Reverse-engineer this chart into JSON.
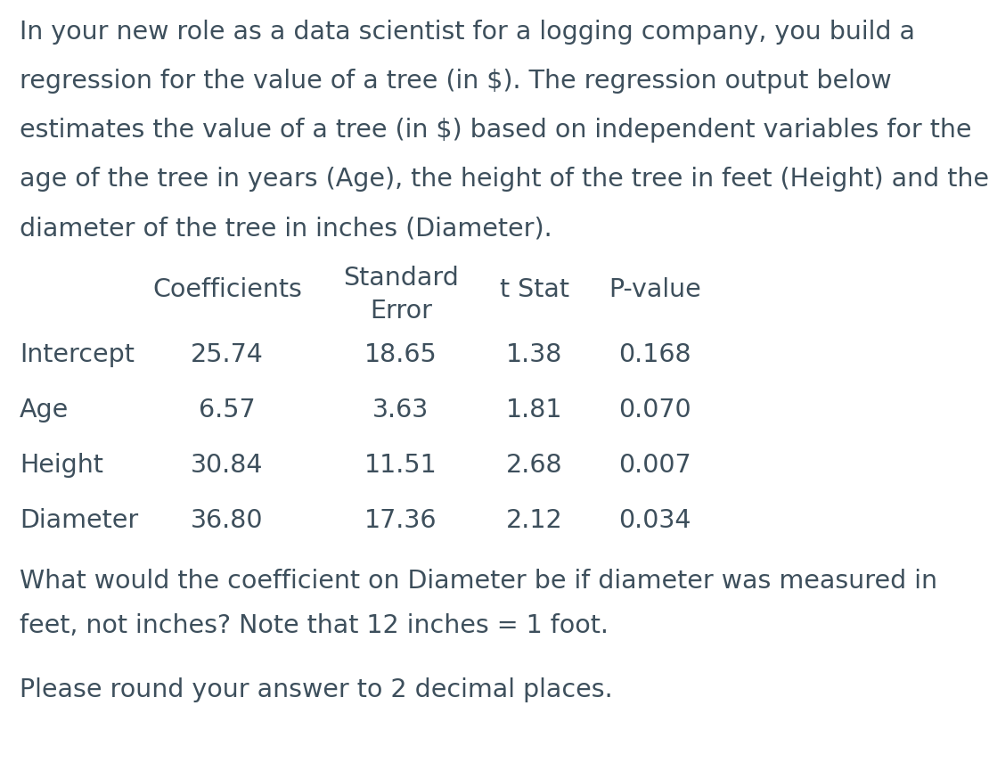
{
  "intro_lines": [
    "In your new role as a data scientist for a logging company, you build a",
    "regression for the value of a tree (in $). The regression output below",
    "estimates the value of a tree (in $) based on independent variables for the",
    "age of the tree in years (Age), the height of the tree in feet (Height) and the",
    "diameter of the tree in inches (Diameter)."
  ],
  "header_row": [
    "",
    "Coefficients",
    "Standard",
    "t Stat",
    "P-value"
  ],
  "header_row2": [
    "",
    "",
    "Error",
    "",
    ""
  ],
  "table_data": [
    [
      "Intercept",
      "25.74",
      "18.65",
      "1.38",
      "0.168"
    ],
    [
      "Age",
      "6.57",
      "3.63",
      "1.81",
      "0.070"
    ],
    [
      "Height",
      "30.84",
      "11.51",
      "2.68",
      "0.007"
    ],
    [
      "Diameter",
      "36.80",
      "17.36",
      "2.12",
      "0.034"
    ]
  ],
  "question_lines": [
    "What would the coefficient on Diameter be if diameter was measured in",
    "feet, not inches? Note that 12 inches = 1 foot."
  ],
  "answer_prompt": "Please round your answer to 2 decimal places.",
  "bg_color": "#ffffff",
  "text_color": "#3d4f5c",
  "font_size": 20.5
}
